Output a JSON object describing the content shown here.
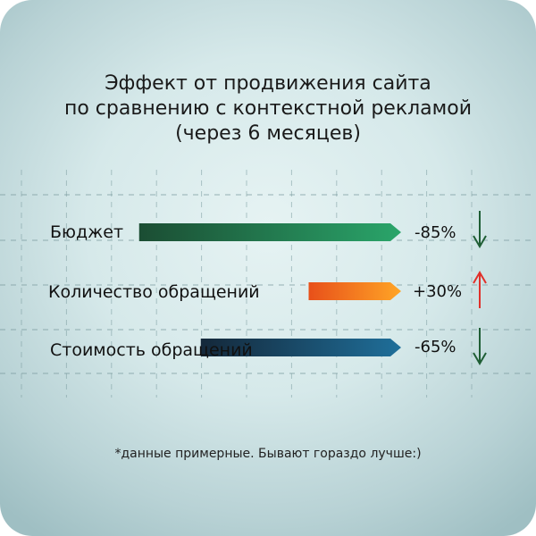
{
  "chart_data": {
    "type": "bar",
    "title_lines": [
      "Эффект от продвижения сайта",
      "по сравнению с контекстной рекламой",
      "(через 6 месяцев)"
    ],
    "categories": [
      "Бюджет",
      "Количество обращений",
      "Стоимость обращений"
    ],
    "values": [
      -85,
      30,
      -65
    ],
    "value_labels": [
      "-85%",
      "+30%",
      "-65%"
    ],
    "directions": [
      "down",
      "up",
      "down"
    ],
    "unit": "%",
    "grid": true,
    "footnote": "*данные примерные. Бывают гораздо лучше:)"
  },
  "colors": {
    "budget_bar": [
      "#1b4d33",
      "#2aa56a"
    ],
    "requests_bar": [
      "#e8501a",
      "#ffa526"
    ],
    "cost_bar": [
      "#14283a",
      "#1f6f9a"
    ],
    "arrow_down": "#1f5e35",
    "arrow_up": "#e0302a",
    "grid_line": "#7a9a9e"
  },
  "icons": {
    "down": "arrow-down-icon",
    "up": "arrow-up-icon"
  }
}
